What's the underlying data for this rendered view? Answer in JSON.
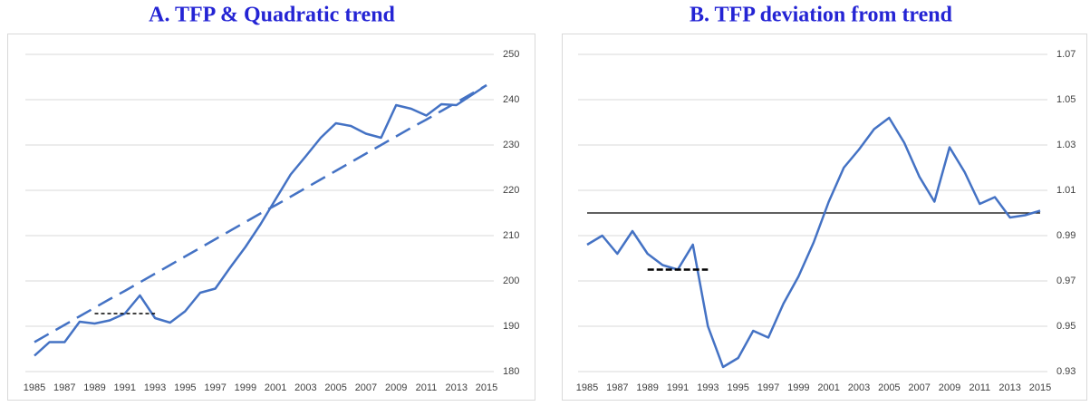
{
  "chart_data": [
    {
      "type": "line",
      "title": "A. TFP & Quadratic trend",
      "categories": [
        "1985",
        null,
        "1987",
        null,
        "1989",
        null,
        "1991",
        null,
        "1993",
        null,
        "1995",
        null,
        "1997",
        null,
        "1999",
        null,
        "2001",
        null,
        "2003",
        null,
        "2005",
        null,
        "2007",
        null,
        "2009",
        null,
        "2011",
        null,
        "2013",
        null,
        "2015"
      ],
      "series": [
        {
          "color": "#4472c4",
          "values": [
            183.5,
            186.5,
            186.5,
            191,
            190.6,
            191.3,
            192.8,
            196.8,
            191.8,
            190.8,
            193.3,
            197.4,
            198.3,
            203,
            207.5,
            212.5,
            218,
            223.5,
            227.5,
            231.6,
            234.8,
            234.2,
            232.5,
            231.6,
            238.8,
            238,
            236.5,
            239,
            238.8,
            241,
            243.2
          ]
        },
        {
          "color": "#4472c4",
          "dash": "18,9",
          "values": [
            186.5,
            188.4,
            190.3,
            192.2,
            194.1,
            196,
            197.8,
            199.7,
            201.6,
            203.5,
            205.4,
            207.3,
            209.2,
            211.1,
            213,
            214.9,
            216.7,
            218.6,
            220.5,
            222.4,
            224.3,
            226.2,
            228.1,
            230,
            231.9,
            233.8,
            235.6,
            237.5,
            239.4,
            241.3,
            243.2
          ]
        },
        {
          "color": "#000000",
          "dash": "4,3",
          "thin": true,
          "values": [
            null,
            null,
            null,
            null,
            192.8,
            192.8,
            192.8,
            192.8,
            192.8,
            null,
            null,
            null,
            null,
            null,
            null,
            null,
            null,
            null,
            null,
            null,
            null,
            null,
            null,
            null,
            null,
            null,
            null,
            null,
            null,
            null,
            null
          ]
        }
      ],
      "ylim": [
        180,
        250
      ],
      "yticks": [
        180,
        190,
        200,
        210,
        220,
        230,
        240,
        250
      ],
      "grid": true,
      "y_axis_side": "right"
    },
    {
      "type": "line",
      "title": "B. TFP deviation from trend",
      "categories": [
        "1985",
        null,
        "1987",
        null,
        "1989",
        null,
        "1991",
        null,
        "1993",
        null,
        "1995",
        null,
        "1997",
        null,
        "1999",
        null,
        "2001",
        null,
        "2003",
        null,
        "2005",
        null,
        "2007",
        null,
        "2009",
        null,
        "2011",
        null,
        "2013",
        null,
        "2015"
      ],
      "series": [
        {
          "color": "#4472c4",
          "values": [
            0.986,
            0.99,
            0.982,
            0.992,
            0.982,
            0.977,
            0.975,
            0.986,
            0.95,
            0.932,
            0.936,
            0.948,
            0.945,
            0.96,
            0.972,
            0.987,
            1.005,
            1.02,
            1.028,
            1.037,
            1.042,
            1.031,
            1.016,
            1.005,
            1.029,
            1.018,
            1.004,
            1.007,
            0.998,
            0.999,
            1.001
          ]
        },
        {
          "color": "#000000",
          "dash": "7,3",
          "values": [
            null,
            null,
            null,
            null,
            0.975,
            0.975,
            0.975,
            0.975,
            0.975,
            null,
            null,
            null,
            null,
            null,
            null,
            null,
            null,
            null,
            null,
            null,
            null,
            null,
            null,
            null,
            null,
            null,
            null,
            null,
            null,
            null,
            null
          ]
        }
      ],
      "reference_line": 1,
      "ylim": [
        0.93,
        1.07
      ],
      "yticks": [
        0.93,
        0.95,
        0.97,
        0.99,
        1.01,
        1.03,
        1.05,
        1.07
      ],
      "grid": true,
      "y_axis_side": "right"
    }
  ]
}
